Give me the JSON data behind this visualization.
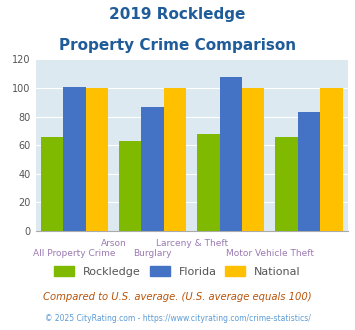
{
  "title_line1": "2019 Rockledge",
  "title_line2": "Property Crime Comparison",
  "groups": [
    {
      "rockledge": 66,
      "florida": 101,
      "national": 100
    },
    {
      "rockledge": 63,
      "florida": 87,
      "national": 100
    },
    {
      "rockledge": 68,
      "florida": 108,
      "national": 100
    },
    {
      "rockledge": 66,
      "florida": 83,
      "national": 100
    }
  ],
  "x_positions": [
    0.4,
    1.2,
    2.0,
    2.8
  ],
  "label_top": [
    [
      "Arson",
      0.8
    ],
    [
      "Larceny & Theft",
      1.6
    ]
  ],
  "label_bottom": [
    [
      "All Property Crime",
      0.4
    ],
    [
      "Burglary",
      1.2
    ],
    [
      "Motor Vehicle Theft",
      2.4
    ]
  ],
  "colors": {
    "rockledge": "#7fba00",
    "florida": "#4472c4",
    "national": "#ffc000"
  },
  "ylim": [
    0,
    120
  ],
  "yticks": [
    0,
    20,
    40,
    60,
    80,
    100,
    120
  ],
  "legend_labels": [
    "Rockledge",
    "Florida",
    "National"
  ],
  "footnote1": "Compared to U.S. average. (U.S. average equals 100)",
  "footnote2": "© 2025 CityRating.com - https://www.cityrating.com/crime-statistics/",
  "title_color": "#1f5c99",
  "footnote1_color": "#b8540a",
  "footnote2_color": "#5b9bd5",
  "xlabel_color": "#9b7ab3",
  "bg_color": "#dce9f0",
  "bar_width": 0.23
}
